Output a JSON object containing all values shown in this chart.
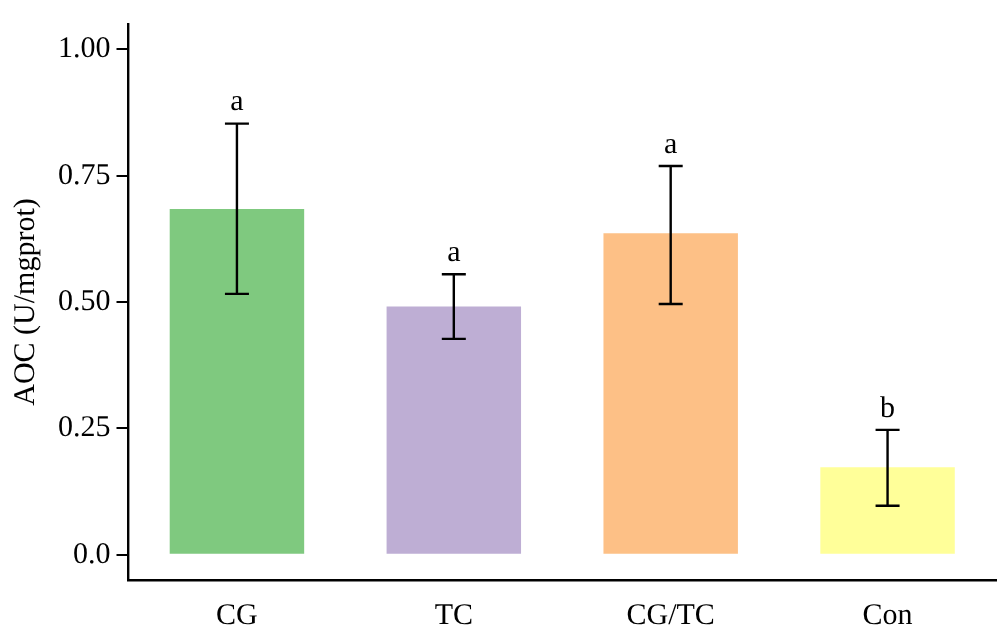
{
  "chart_data": {
    "type": "bar",
    "ylabel": "AOC (U/mgprot)",
    "categories": [
      "CG",
      "TC",
      "CG/TC",
      "Con"
    ],
    "values": [
      0.684,
      0.491,
      0.636,
      0.173
    ],
    "colors": [
      "#7fc97f",
      "#beaed4",
      "#fdc086",
      "#ffff99"
    ],
    "errors": [
      [
        0.516,
        0.853
      ],
      [
        0.427,
        0.555
      ],
      [
        0.496,
        0.769
      ],
      [
        0.097,
        0.247
      ]
    ],
    "ylim": [
      -0.05,
      1.05
    ],
    "yticks": [
      {
        "value": 0,
        "label": "0.0"
      },
      0.25,
      {
        "value": 0.5,
        "label": "0.50"
      },
      0.75,
      {
        "value": 1,
        "label": "1.00"
      }
    ],
    "grid": false,
    "legend": false,
    "annotations": [
      {
        "text": "a",
        "x": "CG",
        "y": 0.853
      },
      {
        "text": "a",
        "x": "TC",
        "y": 0.555
      },
      {
        "text": "a",
        "x": "CG/TC",
        "y": 0.769
      },
      {
        "text": "b",
        "x": "Con",
        "y": 0.247
      }
    ]
  }
}
